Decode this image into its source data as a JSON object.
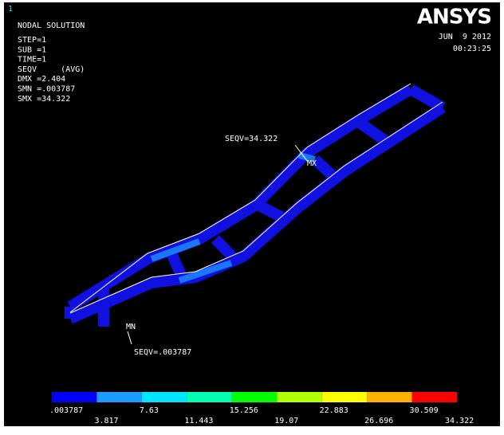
{
  "window_number": "1",
  "header": {
    "title": "NODAL SOLUTION",
    "info": [
      "STEP=1",
      "SUB =1",
      "TIME=1",
      "SEQV     (AVG)",
      "DMX =2.404",
      "SMN =.003787",
      "SMX =34.322"
    ]
  },
  "logo": "ANSYS",
  "date": "JUN  9 2012",
  "time": "00:23:25",
  "annotations": {
    "max_label": "SEQV=34.322",
    "max_node": "MX",
    "min_label": "SEQV=.003787",
    "min_node": "MN"
  },
  "legend": {
    "colors": [
      "#0000ff",
      "#1e9bff",
      "#00e5ff",
      "#00ffb0",
      "#00ff00",
      "#b2ff00",
      "#ffff00",
      "#ffb200",
      "#ff0000"
    ],
    "labels": [
      ".003787",
      "3.817",
      "7.63",
      "11.443",
      "15.256",
      "19.07",
      "22.883",
      "26.696",
      "30.509",
      "34.322"
    ]
  }
}
